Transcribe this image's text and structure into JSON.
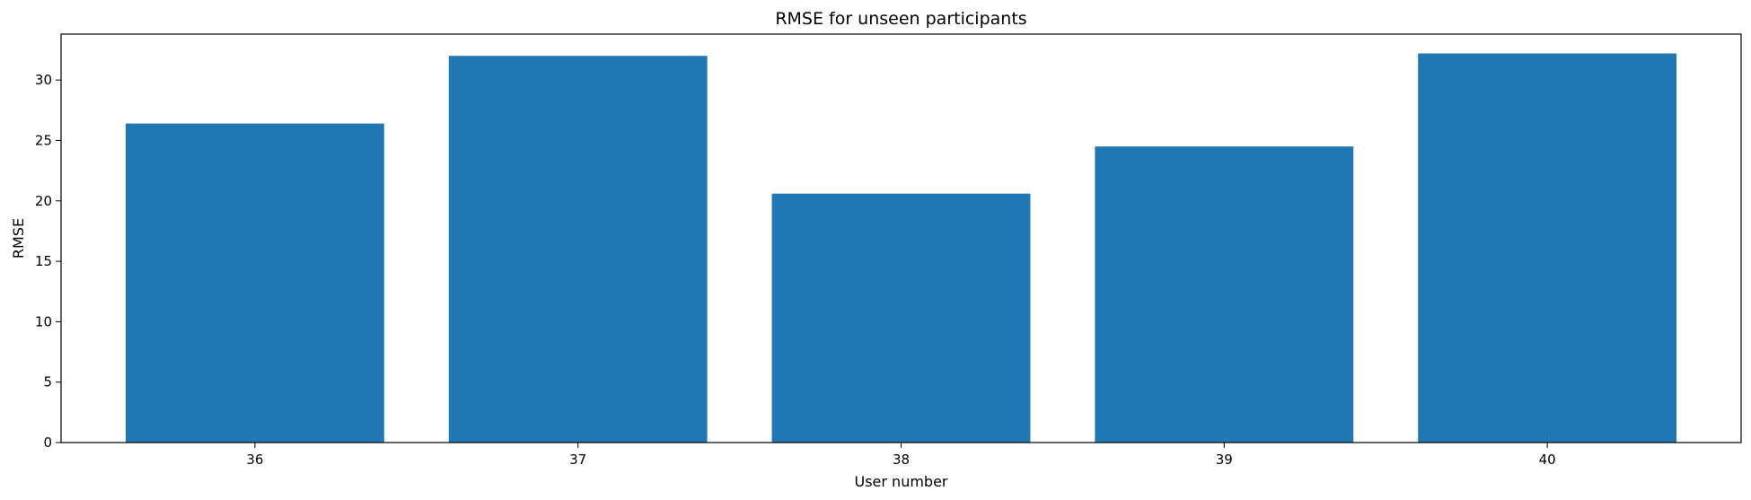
{
  "chart_data": {
    "type": "bar",
    "title": "RMSE for unseen participants",
    "xlabel": "User number",
    "ylabel": "RMSE",
    "categories": [
      "36",
      "37",
      "38",
      "39",
      "40"
    ],
    "values": [
      26.4,
      32.0,
      20.6,
      24.5,
      32.2
    ],
    "ylim": [
      0,
      33.8
    ],
    "yticks": [
      0,
      5,
      10,
      15,
      20,
      25,
      30
    ],
    "grid": false,
    "bar_color": "#1f77b4"
  }
}
